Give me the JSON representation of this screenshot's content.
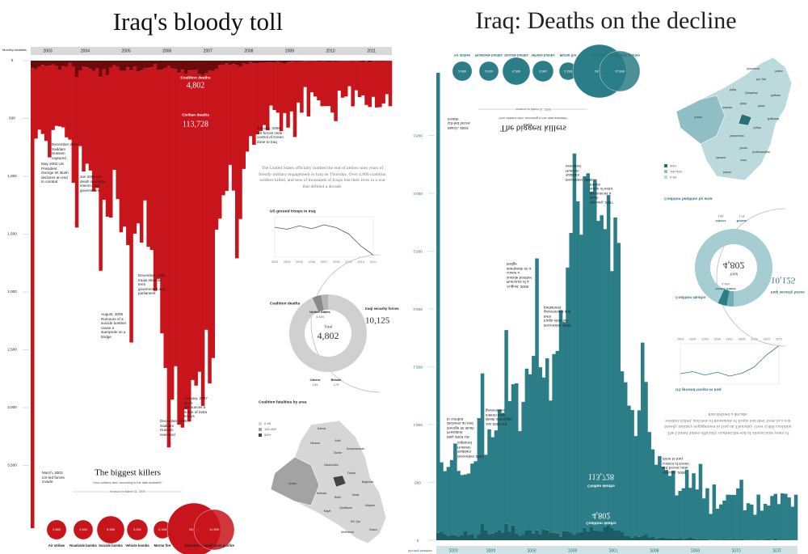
{
  "chart_data": {
    "type": "bar",
    "title": "Iraq's bloody toll",
    "mirror_title": "Iraq: Deaths on the decline",
    "y_label": "Monthly fatalities",
    "ylim": [
      0,
      4000
    ],
    "yticks": [
      0,
      500,
      {
        "value": 1000,
        "label": "1,000"
      },
      {
        "value": 1500,
        "label": "1,500"
      },
      {
        "value": 2000,
        "label": "2,000"
      },
      {
        "value": 2500,
        "label": "2,500"
      },
      {
        "value": 3000,
        "label": "3,000"
      },
      {
        "value": 3500,
        "label": "3,500"
      }
    ],
    "categories": [
      null,
      null,
      null,
      null,
      null,
      "2003",
      null,
      null,
      null,
      null,
      null,
      null,
      null,
      null,
      null,
      null,
      "2004",
      null,
      null,
      null,
      null,
      null,
      null,
      null,
      null,
      null,
      null,
      null,
      "2005",
      null,
      null,
      null,
      null,
      null,
      null,
      null,
      null,
      null,
      null,
      null,
      "2006",
      null,
      null,
      null,
      null,
      null,
      null,
      null,
      null,
      null,
      null,
      null,
      "2007",
      null,
      null,
      null,
      null,
      null,
      null,
      null,
      null,
      null,
      null,
      null,
      "2008",
      null,
      null,
      null,
      null,
      null,
      null,
      null,
      null,
      null,
      null,
      null,
      "2009",
      null,
      null,
      null,
      null,
      null,
      null,
      null,
      null,
      null,
      null,
      null,
      "2010",
      null,
      null,
      null,
      null,
      null,
      null,
      null,
      null,
      null,
      null,
      null,
      "2011",
      null,
      null,
      null,
      null,
      null
    ],
    "series": [
      {
        "name": "Coalition deaths",
        "color": "#6d0b0b",
        "mirror_color": "#1c5c63",
        "total": 4802,
        "total_label": "4,802",
        "values": [
          65,
          74,
          52,
          37,
          48,
          44,
          34,
          47,
          82,
          48,
          53,
          20,
          52,
          140,
          84,
          49,
          57,
          72,
          88,
          68,
          141,
          74,
          127,
          60,
          39,
          52,
          88,
          88,
          58,
          85,
          52,
          96,
          86,
          67,
          64,
          58,
          33,
          82,
          79,
          63,
          46,
          66,
          75,
          106,
          78,
          115,
          86,
          81,
          82,
          117,
          131,
          108,
          89,
          88,
          70,
          40,
          40,
          23,
          40,
          30,
          40,
          52,
          21,
          31,
          13,
          23,
          25,
          14,
          17,
          16,
          16,
          18,
          12,
          19,
          25,
          15,
          8,
          7,
          10,
          9,
          2,
          4,
          6,
          5,
          7,
          9,
          6,
          7,
          6,
          7,
          5,
          5,
          2,
          3,
          6,
          2,
          4,
          11,
          2,
          15,
          5,
          4,
          5,
          4,
          2,
          2
        ]
      },
      {
        "name": "Civilian deaths",
        "color": "#c8141b",
        "mirror_color": "#2b7d87",
        "total": 113728,
        "total_label": "113,728",
        "values": [
          3977,
          600,
          545,
          597,
          646,
          792,
          566,
          517,
          487,
          529,
          610,
          663,
          1004,
          1303,
          655,
          910,
          834,
          878,
          1042,
          1033,
          1676,
          1129,
          1222,
          1297,
          905,
          1145,
          1396,
          1347,
          1536,
          2352,
          1444,
          1311,
          1487,
          1141,
          1546,
          1579,
          1957,
          1804,
          2279,
          2594,
          3298,
          2865,
          2567,
          3041,
          3095,
          2900,
          3035,
          2680,
          2728,
          2573,
          2854,
          2219,
          2702,
          2483,
          1391,
          1326,
          1124,
          1103,
          861,
          1093,
          1669,
          1317,
          915,
          755,
          640,
          704,
          612,
          594,
          540,
          586,
          372,
          409,
          438,
          590,
          428,
          564,
          431,
          653,
          352,
          441,
          226,
          478,
          267,
          305,
          336,
          385,
          387,
          385,
          443,
          516,
          254,
          315,
          307,
          218,
          389,
          254,
          311,
          289,
          381,
          386,
          308,
          401,
          397,
          366,
          288,
          392
        ]
      }
    ],
    "annotations": [
      "March, 2003 US-led forces invade",
      "May 2003 US President George W. Bush declares an end to combat",
      "December 2003 Saddam Hussein captured",
      "Jan 2005 US death overnight; interim Iraqi government",
      "August, 2005 Rumours of a suicide bomber cause a stampede on a bridge",
      "December, 2005 Iraqis elect full-term government and parliament",
      "December, 2006 Saddam Hussein executed",
      "January, 2007 Bush announces a surge of extra troops",
      "January, 2009 US forces cede control of Green Zone to Iraq"
    ],
    "intro": "The United States officially marked the end of almost nine years of bloody military engagement in Iraq on Thursday. Over 4,800 coalition soldiers killed, and tens of thousands of Iraqis lost their lives in a war that defined a decade.",
    "troops": {
      "title": "US ground troops in Iraq",
      "categories": [
        "2003",
        "2004",
        "2005",
        "2006",
        "2007",
        "2008",
        "2009",
        "2010",
        "2011"
      ],
      "values": [
        148000,
        138000,
        155000,
        141000,
        160000,
        146000,
        115000,
        55000,
        10000
      ],
      "ylim": [
        0,
        200000
      ],
      "color": "#555555",
      "mirror_color": "#2b7d87"
    },
    "donut": {
      "title": "Coalition deaths",
      "center_label": "Total",
      "total": 4802,
      "total_label": "4,802",
      "categories": [
        "United States",
        "Britain",
        "Others"
      ],
      "values": [
        4484,
        179,
        139
      ],
      "value_labels": [
        "4,484",
        "179",
        "139"
      ],
      "colors": [
        "#d0d0d0",
        "#8a8a8a",
        "#b5b5b5"
      ],
      "mirror_colors": [
        "#a6cdd2",
        "#2b7d87",
        "#74adb4"
      ]
    },
    "security": {
      "label": "Iraqi security forces",
      "value": 10125,
      "value_label": "10,125"
    },
    "map": {
      "title": "Coalition fatalities by area",
      "legend": [
        "0-99",
        "100-499",
        "500+"
      ],
      "regions": [
        "Dahuk",
        "Arbil",
        "Ninawa",
        "Tamim",
        "Sulaymaniyah",
        "Salahuddin",
        "Diyala",
        "Anbar",
        "Baghdad",
        "Wasit",
        "Karbala",
        "Babil",
        "Qadisiyah",
        "Maysan",
        "Najaf",
        "Dhi Qar",
        "Basra",
        "Muthanna"
      ]
    },
    "killers": {
      "title": "The biggest killers",
      "subtitle": "How civilians died, according to the data available*",
      "period": "Invasion to March 31, 2009",
      "categories": [
        "Air strikes",
        "Roadside bombs",
        "Suicide bombs",
        "Vehicle bombs",
        "Mortar fire",
        "Executions",
        "Small arms gunfire"
      ],
      "values": [
        2680,
        2634,
        5266,
        3061,
        2189,
        19714,
        11390
      ],
      "value_labels": [
        "2,680",
        "2,634",
        "5,266",
        "3,061",
        "2,189",
        "19,714",
        "11,390"
      ]
    }
  }
}
